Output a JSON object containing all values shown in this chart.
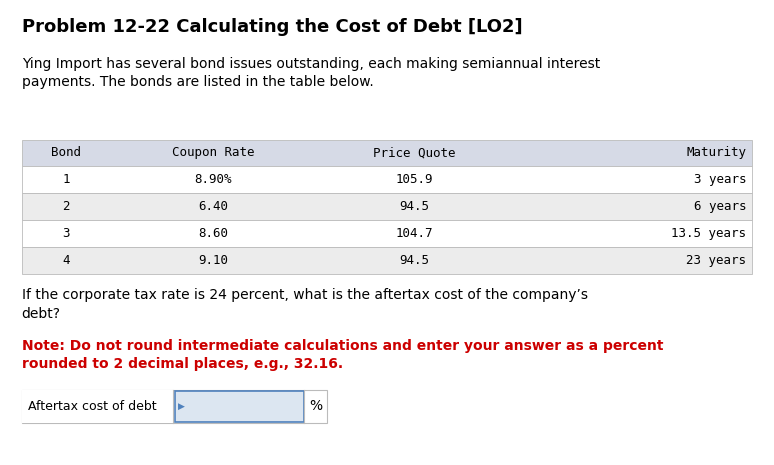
{
  "title": "Problem 12-22 Calculating the Cost of Debt [LO2]",
  "intro_text": "Ying Import has several bond issues outstanding, each making semiannual interest\npayments. The bonds are listed in the table below.",
  "table_headers": [
    "Bond",
    "Coupon Rate",
    "Price Quote",
    "Maturity"
  ],
  "table_rows": [
    [
      "1",
      "8.90%",
      "105.9",
      "3 years"
    ],
    [
      "2",
      "6.40",
      "94.5",
      "6 years"
    ],
    [
      "3",
      "8.60",
      "104.7",
      "13.5 years"
    ],
    [
      "4",
      "9.10",
      "94.5",
      "23 years"
    ]
  ],
  "question_text": "If the corporate tax rate is 24 percent, what is the aftertax cost of the company’s\ndebt?",
  "note_text": "Note: Do not round intermediate calculations and enter your answer as a percent\nrounded to 2 decimal places, e.g., 32.16.",
  "answer_label": "Aftertax cost of debt",
  "answer_unit": "%",
  "bg_color": "#ffffff",
  "title_color": "#000000",
  "intro_color": "#000000",
  "question_color": "#000000",
  "note_color": "#cc0000",
  "table_header_bg": "#d6dae6",
  "table_row_bg_odd": "#ffffff",
  "table_row_bg_even": "#ececec",
  "table_border_color": "#bbbbbb",
  "answer_input_bg": "#dce6f1",
  "answer_box_border": "#4f81bd",
  "answer_outer_border": "#bbbbbb",
  "mono_font": "DejaVu Sans Mono",
  "sans_font": "DejaVu Sans",
  "title_fontsize": 13,
  "body_fontsize": 10,
  "table_fontsize": 9
}
